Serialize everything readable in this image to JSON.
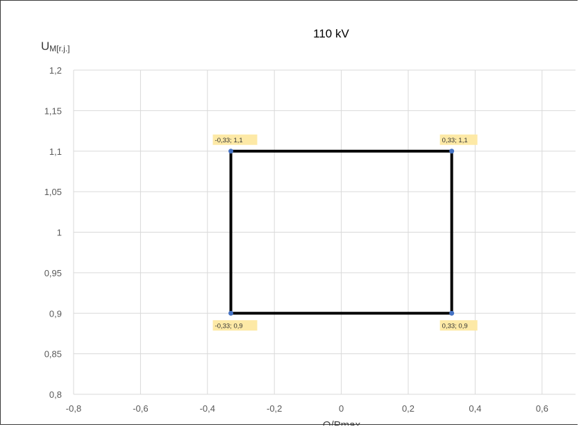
{
  "chart_data": {
    "type": "line",
    "title": "110 kV",
    "ylabel_main": "U",
    "ylabel_sub": "M[r.j.]",
    "xlabel": "Q/Pmax",
    "xlim": [
      -0.8,
      0.7
    ],
    "ylim": [
      0.8,
      1.2
    ],
    "x_ticks": [
      -0.8,
      -0.6,
      -0.4,
      -0.2,
      0,
      0.2,
      0.4,
      0.6
    ],
    "x_tick_labels": [
      "-0,8",
      "-0,6",
      "-0,4",
      "-0,2",
      "0",
      "0,2",
      "0,4",
      "0,6"
    ],
    "y_ticks": [
      0.8,
      0.85,
      0.9,
      0.95,
      1.0,
      1.05,
      1.1,
      1.15,
      1.2
    ],
    "y_tick_labels": [
      "0,8",
      "0,85",
      "0,9",
      "0,95",
      "1",
      "1,05",
      "1,1",
      "1,15",
      "1,2"
    ],
    "grid": true,
    "line_color": "#000000",
    "marker_color": "#4472c4",
    "label_bg": "#fde9a6",
    "series": [
      {
        "points": [
          {
            "x": -0.33,
            "y": 1.1,
            "label": "-0,33; 1,1"
          },
          {
            "x": 0.33,
            "y": 1.1,
            "label": "0,33; 1,1"
          },
          {
            "x": 0.33,
            "y": 0.9,
            "label": "0,33; 0,9"
          },
          {
            "x": -0.33,
            "y": 0.9,
            "label": "-0,33; 0,9"
          },
          {
            "x": -0.33,
            "y": 1.1
          }
        ]
      }
    ]
  }
}
